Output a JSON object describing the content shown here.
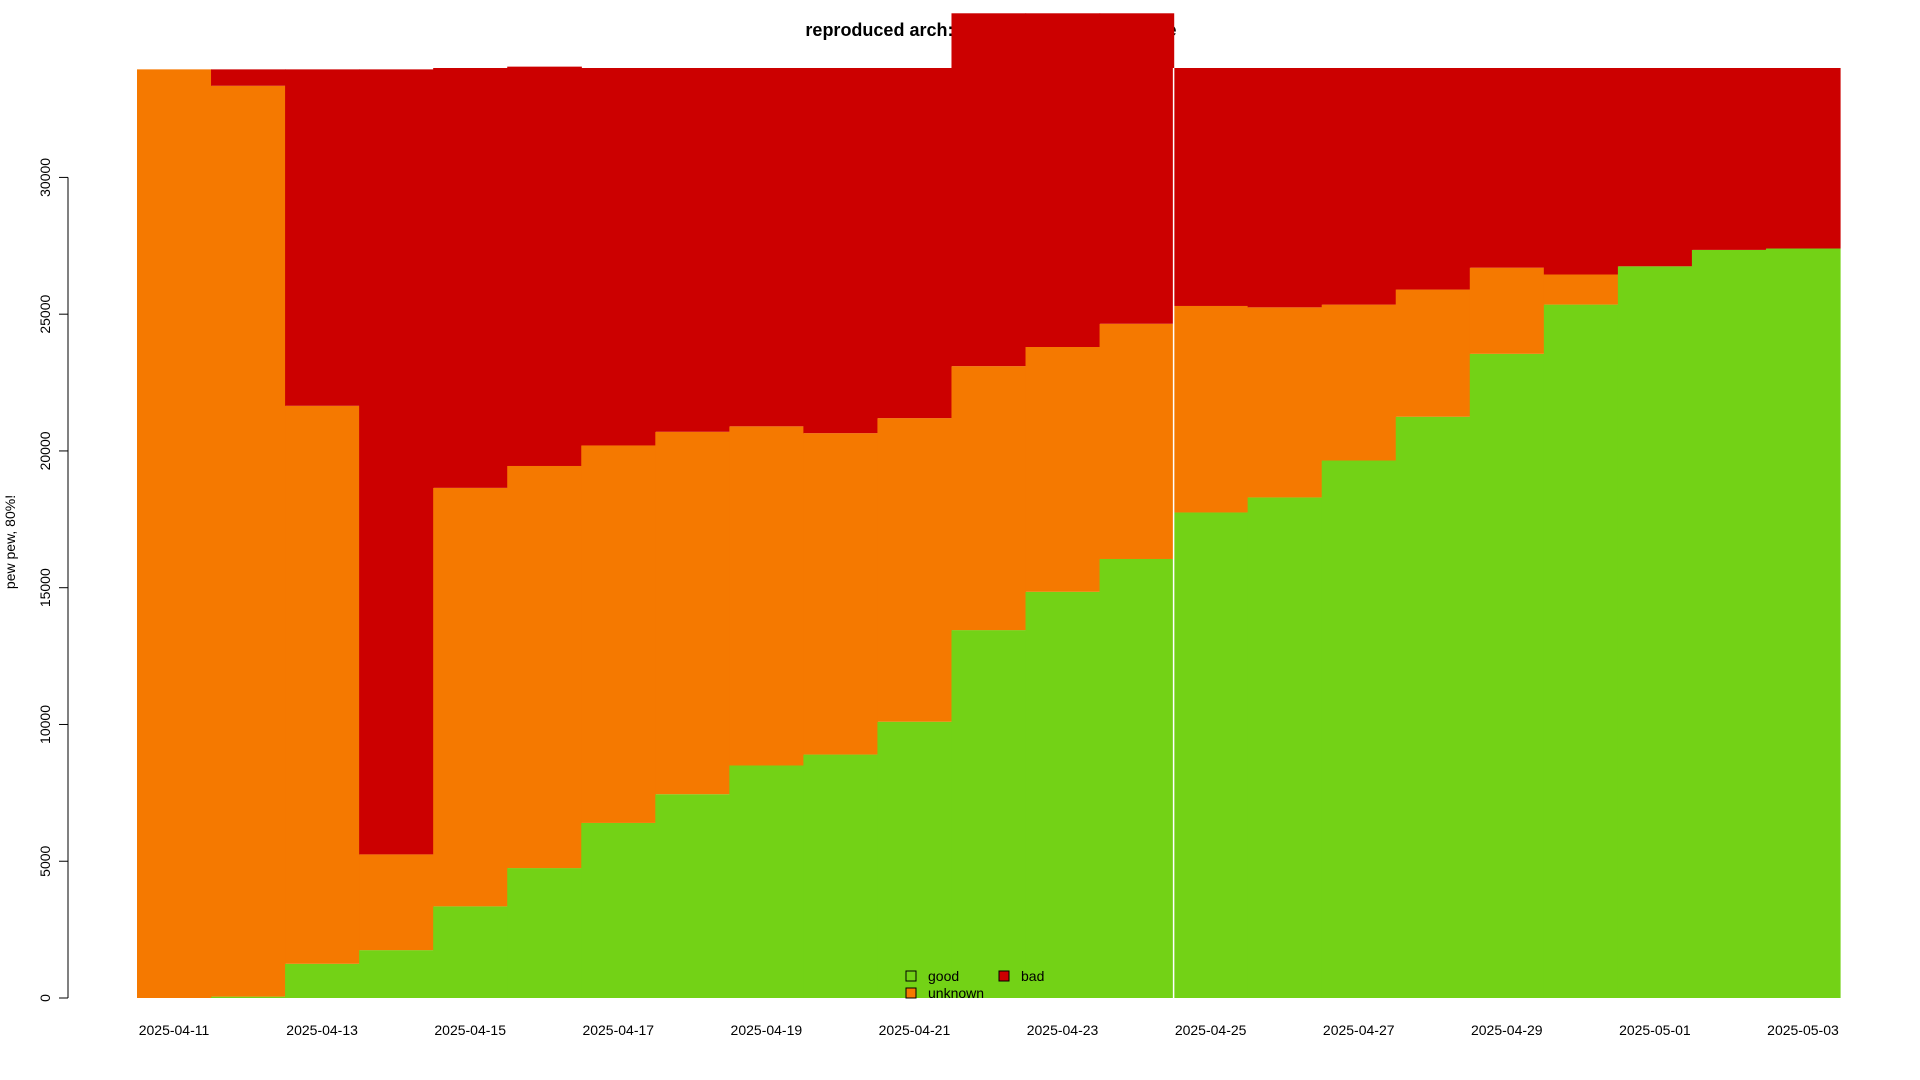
{
  "chart_data": {
    "type": "area",
    "title": "reproduced arch:ppc64el packages in trixie",
    "xlabel": "",
    "ylabel": "pew pew, 80%!",
    "ylim": [
      0,
      34000
    ],
    "y_ticks": [
      0,
      5000,
      10000,
      15000,
      20000,
      25000,
      30000
    ],
    "x_tick_labels": [
      "2025-04-11",
      "2025-04-13",
      "2025-04-15",
      "2025-04-17",
      "2025-04-19",
      "2025-04-21",
      "2025-04-23",
      "2025-04-25",
      "2025-04-27",
      "2025-04-29",
      "2025-05-01",
      "2025-05-03"
    ],
    "dates": [
      "2025-04-11",
      "2025-04-12",
      "2025-04-13",
      "2025-04-14",
      "2025-04-15",
      "2025-04-16",
      "2025-04-17",
      "2025-04-18",
      "2025-04-19",
      "2025-04-20",
      "2025-04-21",
      "2025-04-22",
      "2025-04-23",
      "2025-04-24",
      "2025-04-25",
      "2025-04-26",
      "2025-04-27",
      "2025-04-28",
      "2025-04-29",
      "2025-04-30",
      "2025-05-01",
      "2025-05-02",
      "2025-05-03"
    ],
    "marker_date": "2025-04-25",
    "series": [
      {
        "name": "good",
        "color": "#73D216",
        "values": [
          0,
          50,
          1250,
          1750,
          3350,
          4750,
          6400,
          7450,
          8500,
          8900,
          10100,
          13450,
          14850,
          16050,
          17750,
          18300,
          19650,
          21250,
          23550,
          25350,
          26750,
          27350,
          27400
        ]
      },
      {
        "name": "unknown",
        "color": "#F57900",
        "values": [
          33950,
          33300,
          20400,
          3500,
          15300,
          14700,
          13800,
          13250,
          12400,
          11750,
          11100,
          9650,
          8950,
          8600,
          7550,
          6950,
          5700,
          4650,
          3150,
          1100,
          0,
          0,
          0
        ]
      },
      {
        "name": "bad",
        "color": "#CC0000",
        "values": [
          0,
          600,
          12300,
          28700,
          15350,
          14600,
          13800,
          13300,
          13100,
          13350,
          12800,
          12900,
          12200,
          11350,
          8700,
          8750,
          8650,
          8100,
          7300,
          7550,
          7250,
          6650,
          6600
        ]
      }
    ],
    "legend": {
      "position": "bottom-center",
      "entries": [
        "good",
        "bad",
        "unknown"
      ]
    }
  }
}
